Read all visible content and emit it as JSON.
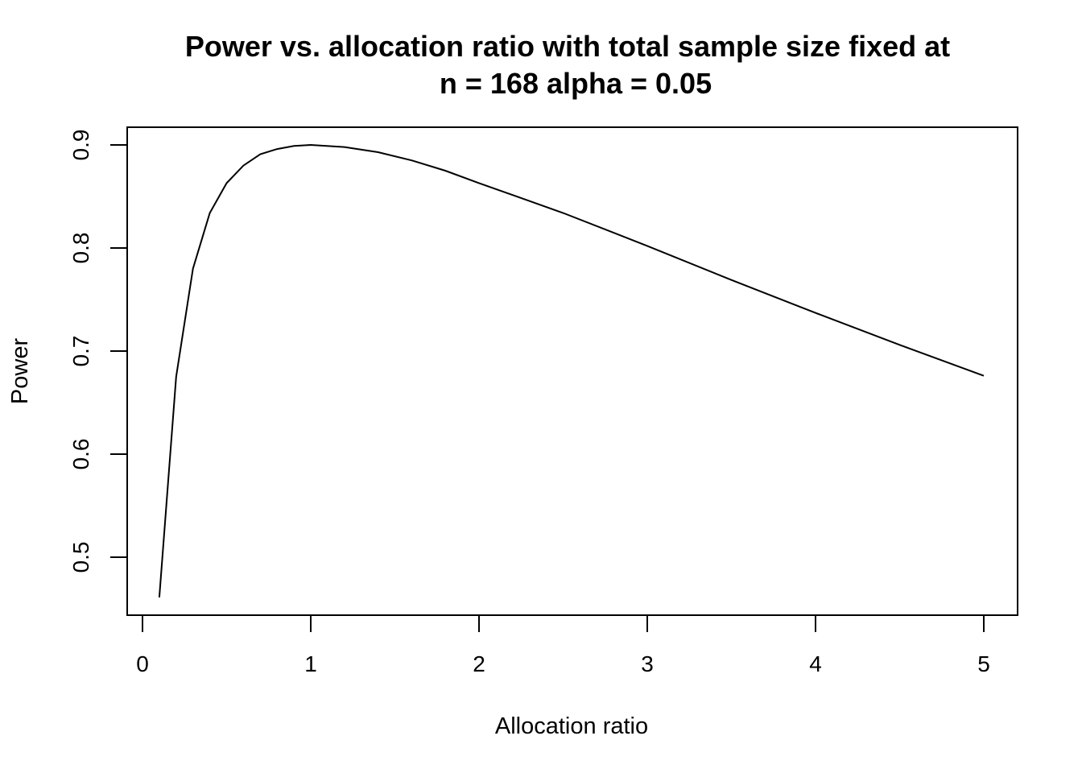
{
  "chart_data": {
    "type": "line",
    "title_line1": "Power vs. allocation ratio with total sample size fixed at",
    "title_line2": "n = 168 alpha = 0.05",
    "xlabel": "Allocation ratio",
    "ylabel": "Power",
    "xlim": [
      0,
      5
    ],
    "ylim": [
      0.5,
      0.9
    ],
    "x_ticks": [
      0,
      1,
      2,
      3,
      4,
      5
    ],
    "x_tick_labels": [
      "0",
      "1",
      "2",
      "3",
      "4",
      "5"
    ],
    "y_ticks": [
      0.5,
      0.6,
      0.7,
      0.8,
      0.9
    ],
    "y_tick_labels": [
      "0.5",
      "0.6",
      "0.7",
      "0.8",
      "0.9"
    ],
    "grid": false,
    "series": [
      {
        "color": "#000000",
        "x": [
          0.1,
          0.2,
          0.3,
          0.4,
          0.5,
          0.6,
          0.7,
          0.8,
          0.9,
          1.0,
          1.2,
          1.4,
          1.6,
          1.8,
          2.0,
          2.5,
          3.0,
          3.5,
          4.0,
          4.5,
          5.0
        ],
        "y": [
          0.461,
          0.675,
          0.78,
          0.834,
          0.863,
          0.88,
          0.891,
          0.896,
          0.899,
          0.9,
          0.898,
          0.893,
          0.885,
          0.875,
          0.863,
          0.834,
          0.802,
          0.769,
          0.737,
          0.706,
          0.676
        ]
      }
    ]
  }
}
